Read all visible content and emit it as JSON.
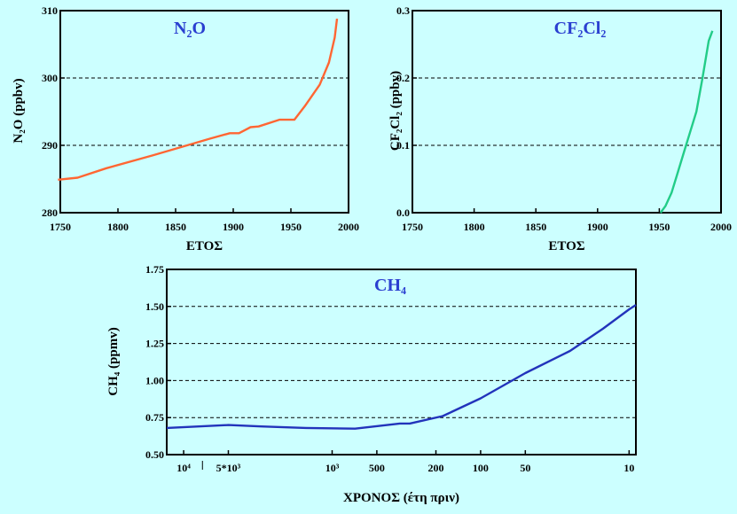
{
  "chart_data": [
    {
      "type": "line",
      "title": "N₂O",
      "xlabel": "ΕΤΟΣ",
      "ylabel": "N₂O (ppbv)",
      "xlim": [
        1750,
        2000
      ],
      "ylim": [
        280,
        310
      ],
      "x_ticks": [
        "1750",
        "1800",
        "1850",
        "1900",
        "1950",
        "2000"
      ],
      "y_ticks": [
        "280",
        "290",
        "300",
        "310"
      ],
      "grid_y": [
        290,
        300
      ],
      "series": [
        {
          "color": "#ff6633",
          "x": [
            1748,
            1765,
            1790,
            1830,
            1860,
            1880,
            1897,
            1905,
            1915,
            1922,
            1940,
            1953,
            1962,
            1975,
            1983,
            1988,
            1990
          ],
          "y": [
            284.9,
            285.2,
            286.6,
            288.5,
            290.0,
            291.0,
            291.8,
            291.8,
            292.7,
            292.8,
            293.8,
            293.8,
            295.8,
            299.0,
            302.3,
            306.0,
            308.8
          ]
        }
      ]
    },
    {
      "type": "line",
      "title": "CF₂Cl₂",
      "xlabel": "ΕΤΟΣ",
      "ylabel": "CF₂Cl₂ (ppbv)",
      "xlim": [
        1750,
        2000
      ],
      "ylim": [
        0.0,
        0.3
      ],
      "x_ticks": [
        "1750",
        "1800",
        "1850",
        "1900",
        "1950",
        "2000"
      ],
      "y_ticks": [
        "0.0",
        "0.1",
        "0.2",
        "0.3"
      ],
      "grid_y": [
        0.1,
        0.2
      ],
      "series": [
        {
          "color": "#22cc88",
          "x": [
            1951,
            1955,
            1960,
            1965,
            1970,
            1975,
            1980,
            1985,
            1990,
            1993
          ],
          "y": [
            0.0,
            0.01,
            0.03,
            0.06,
            0.09,
            0.12,
            0.15,
            0.2,
            0.255,
            0.27
          ]
        }
      ]
    },
    {
      "type": "line",
      "title": "CH₄",
      "xlabel": "ΧΡΟΝΟΣ (έτη πριν)",
      "ylabel": "CH₄ (ppmv)",
      "x_scale": "log",
      "x_reversed": true,
      "xlim": [
        13000,
        9
      ],
      "ylim": [
        0.5,
        1.75
      ],
      "x_tick_values": [
        10000,
        5000,
        1000,
        500,
        200,
        100,
        50,
        10
      ],
      "x_tick_labels": [
        "10⁴",
        "5*10³",
        "10³",
        "500",
        "200",
        "100",
        "50",
        "10"
      ],
      "y_ticks": [
        "0.50",
        "0.75",
        "1.00",
        "1.25",
        "1.50",
        "1.75"
      ],
      "grid_y": [
        0.75,
        1.0,
        1.25,
        1.5
      ],
      "series": [
        {
          "color": "#2233bb",
          "x": [
            13000,
            5000,
            3000,
            1500,
            700,
            350,
            300,
            180,
            100,
            50,
            25,
            15,
            10,
            9
          ],
          "y": [
            0.68,
            0.7,
            0.69,
            0.68,
            0.675,
            0.71,
            0.71,
            0.76,
            0.88,
            1.05,
            1.2,
            1.35,
            1.48,
            1.51
          ]
        }
      ]
    }
  ]
}
